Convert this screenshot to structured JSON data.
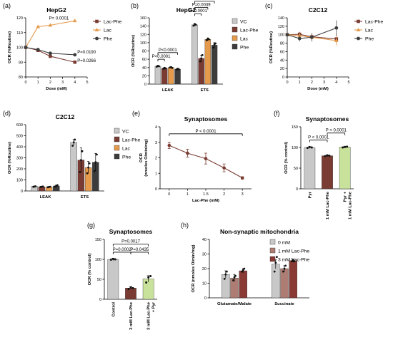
{
  "colors": {
    "VC": "#c8c8c8",
    "LacPhe": "#7a3b32",
    "Lac": "#e59a4c",
    "Phe": "#3c3c3c",
    "PyrLac": "#c9e29b",
    "m1": "#ad7d74",
    "m3": "#8a3a34"
  },
  "chart_data": [
    {
      "id": "a",
      "panel_label": "(a)",
      "type": "line",
      "title": "HepG2",
      "xlabel": "Dose (mM)",
      "ylabel": "OCR (%Routine)",
      "xlim": [
        0,
        5
      ],
      "ylim": [
        80,
        120
      ],
      "xticks": [
        "0",
        "1",
        "2",
        "3",
        "4",
        "5"
      ],
      "yticks": [
        "80",
        "90",
        "100",
        "110",
        "120"
      ],
      "x": [
        0,
        1,
        2,
        4
      ],
      "series": [
        {
          "name": "Lac-Phe",
          "color_key": "LacPhe",
          "marker": "square",
          "values": [
            100,
            98,
            94,
            90
          ]
        },
        {
          "name": "Lac",
          "color_key": "Lac",
          "marker": "triangle",
          "values": [
            100,
            114,
            115,
            118
          ]
        },
        {
          "name": "Phe",
          "color_key": "Phe",
          "marker": "circle",
          "values": [
            100,
            98.5,
            96,
            95
          ]
        }
      ],
      "annotations": [
        "P= 0.0001",
        "P=0.0190",
        "P=0.0266"
      ],
      "legend": "right"
    },
    {
      "id": "b",
      "panel_label": "(b)",
      "type": "bar",
      "title": "HepG2",
      "ylabel": "OCR (%Routine)",
      "ylim": [
        0,
        160
      ],
      "yticks": [
        "0",
        "20",
        "40",
        "60",
        "80",
        "100",
        "120",
        "140",
        "160"
      ],
      "categories": [
        "LEAK",
        "ETS"
      ],
      "series": [
        {
          "name": "VC",
          "color_key": "VC",
          "values": [
            43,
            143
          ]
        },
        {
          "name": "Lac-Phe",
          "color_key": "LacPhe",
          "values": [
            38,
            62
          ]
        },
        {
          "name": "Lac",
          "color_key": "Lac",
          "values": [
            40,
            108
          ]
        },
        {
          "name": "Phe",
          "color_key": "Phe",
          "values": [
            36,
            94
          ]
        }
      ],
      "annotations": [
        "P<0.0001",
        "P<0.0001",
        "P=0.0004",
        "P=0.0039",
        "P<0.0001"
      ],
      "legend": "right"
    },
    {
      "id": "c",
      "panel_label": "(c)",
      "type": "line",
      "title": "C2C12",
      "xlabel": "Dose (mM)",
      "ylabel": "OCR (%Routine)",
      "xlim": [
        0,
        5
      ],
      "ylim": [
        0,
        140
      ],
      "xticks": [
        "0",
        "1",
        "2",
        "3",
        "4",
        "5"
      ],
      "yticks": [
        "0",
        "20",
        "40",
        "60",
        "80",
        "100",
        "120",
        "140"
      ],
      "x": [
        0,
        1,
        2,
        4
      ],
      "series": [
        {
          "name": "Lac-Phe",
          "color_key": "LacPhe",
          "marker": "square",
          "values": [
            100,
            101,
            95,
            90
          ]
        },
        {
          "name": "Lac",
          "color_key": "Lac",
          "marker": "triangle",
          "values": [
            100,
            98,
            94,
            86
          ]
        },
        {
          "name": "Phe",
          "color_key": "Phe",
          "marker": "circle",
          "values": [
            100,
            91,
            94,
            116
          ]
        }
      ],
      "legend": "right"
    },
    {
      "id": "d",
      "panel_label": "(d)",
      "type": "bar",
      "title": "C2C12",
      "ylabel": "OCR (%Routine)",
      "ylim": [
        0,
        600
      ],
      "yticks": [
        "0",
        "100",
        "200",
        "300",
        "400",
        "500",
        "600"
      ],
      "categories": [
        "LEAK",
        "ETS"
      ],
      "series": [
        {
          "name": "VC",
          "color_key": "VC",
          "values": [
            40,
            440
          ]
        },
        {
          "name": "Lac-Phe",
          "color_key": "LacPhe",
          "values": [
            38,
            280
          ]
        },
        {
          "name": "Lac",
          "color_key": "Lac",
          "values": [
            36,
            212
          ]
        },
        {
          "name": "Phe",
          "color_key": "Phe",
          "values": [
            45,
            260
          ]
        }
      ],
      "legend": "right"
    },
    {
      "id": "e",
      "panel_label": "(e)",
      "type": "line",
      "title": "Synaptosomes",
      "xlabel": "Lac-Phe (mM)",
      "ylabel": "OCR (nmoles O/min/mg)",
      "ylim": [
        0,
        4
      ],
      "yticks": [
        "0",
        "1",
        "2",
        "3",
        "4"
      ],
      "categories": [
        "0",
        "1",
        "1.5",
        "2",
        "3"
      ],
      "series": [
        {
          "name": "",
          "color_key": "LacPhe",
          "values": [
            2.8,
            2.3,
            1.95,
            1.35,
            0.7
          ]
        }
      ],
      "annotations": [
        "P < 0.0001"
      ]
    },
    {
      "id": "f",
      "panel_label": "(f)",
      "type": "bar",
      "title": "Synaptosomes",
      "ylabel": "OCR (% control)",
      "ylim": [
        0,
        150
      ],
      "yticks": [
        "0",
        "50",
        "100",
        "150"
      ],
      "categories": [
        "Pyr",
        "1 mM Lac-Phe",
        "Pyr +\n1 mM Lac-Phe"
      ],
      "values": [
        100,
        80,
        101
      ],
      "annotations": [
        "P < 0.0001",
        "P < 0.0001"
      ]
    },
    {
      "id": "g",
      "panel_label": "(g)",
      "type": "bar",
      "title": "Synaptosomes",
      "ylabel": "OCR (% control)",
      "ylim": [
        0,
        150
      ],
      "yticks": [
        "0",
        "50",
        "100",
        "150"
      ],
      "categories": [
        "Control",
        "3 mM Lac-Phe",
        "3 mM Lac-Phe\n+ Pyr"
      ],
      "values": [
        100,
        28,
        51
      ],
      "annotations": [
        "P=0.0017",
        "P=0.0002",
        "P=0.0435"
      ]
    },
    {
      "id": "h",
      "panel_label": "(h)",
      "type": "bar",
      "title": "Non-synaptic mitochondria",
      "ylabel": "OCR (nmoles O/min/mg)",
      "ylim": [
        0,
        40
      ],
      "yticks": [
        "0",
        "10",
        "20",
        "30",
        "40"
      ],
      "categories": [
        "Glutamate/Malate",
        "Succinate"
      ],
      "series": [
        {
          "name": "0 mM",
          "color_key": "VC",
          "values": [
            16,
            23
          ]
        },
        {
          "name": "1 mM Lac-Phe",
          "color_key": "m1",
          "values": [
            13.5,
            20
          ]
        },
        {
          "name": "3 mM Lac-Phe",
          "color_key": "m3",
          "values": [
            18.5,
            25.5
          ]
        }
      ],
      "legend": "right"
    }
  ]
}
